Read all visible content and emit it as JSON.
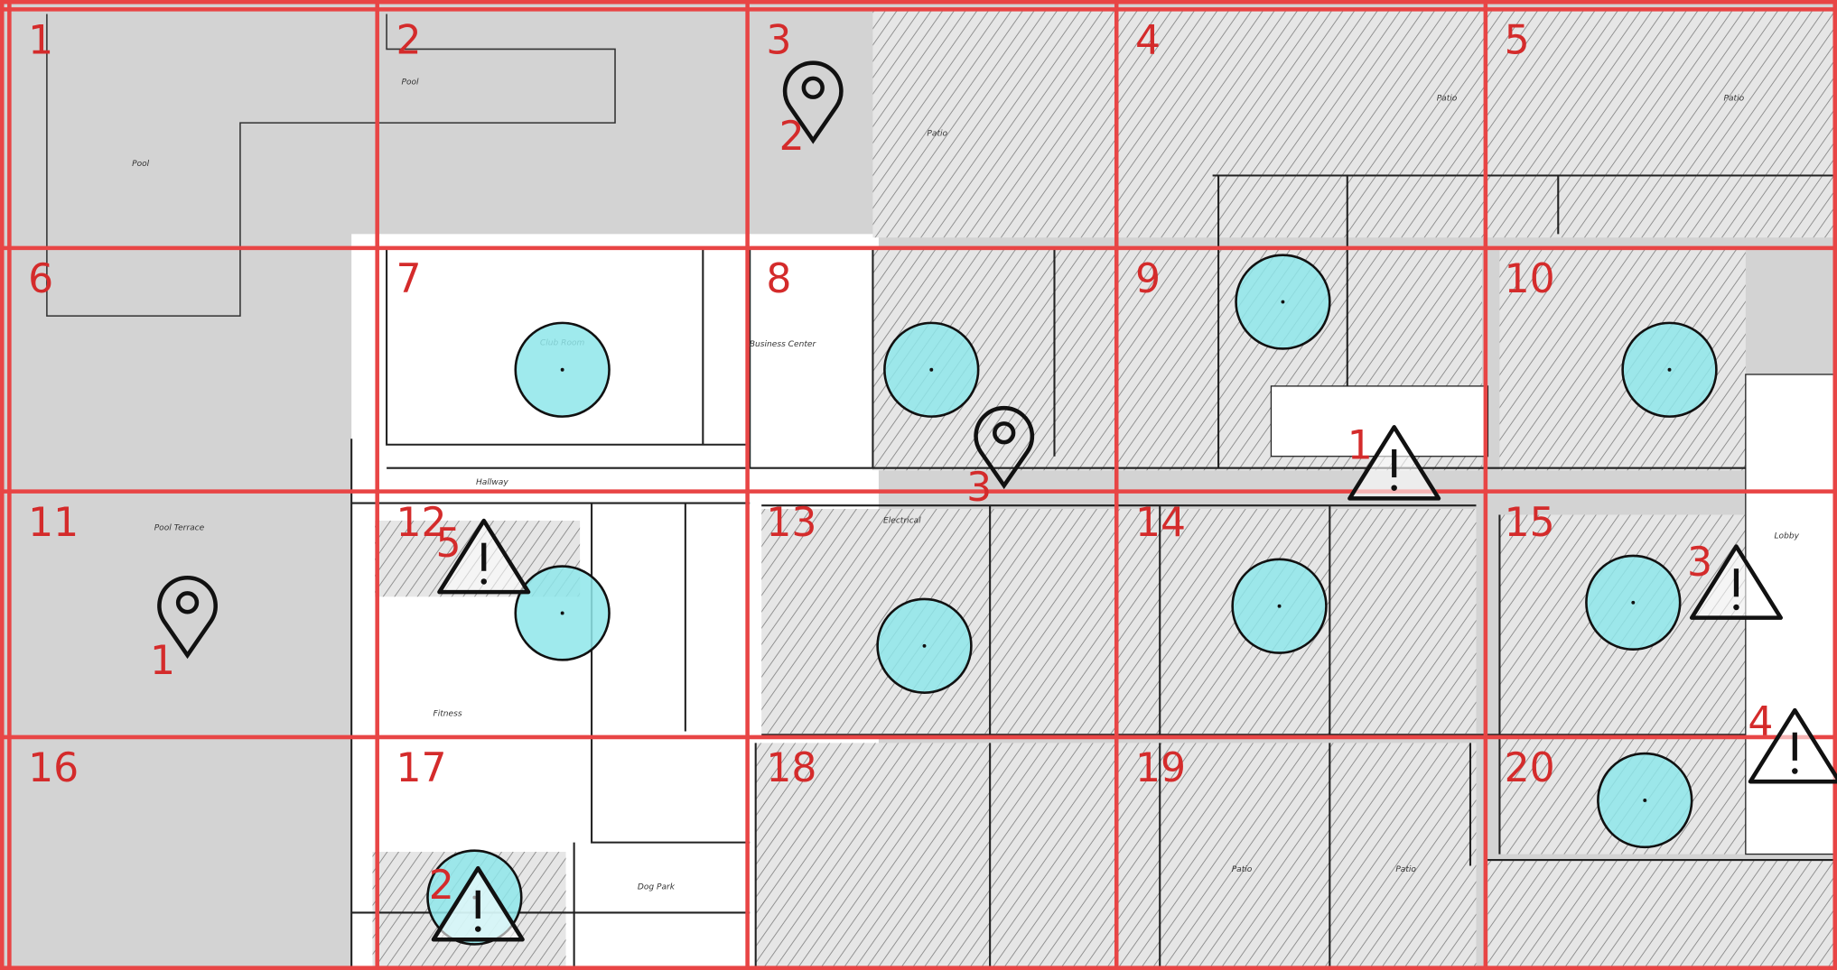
{
  "grid": {
    "cells": [
      "1",
      "2",
      "3",
      "4",
      "5",
      "6",
      "7",
      "8",
      "9",
      "10",
      "11",
      "12",
      "13",
      "14",
      "15",
      "16",
      "17",
      "18",
      "19",
      "20"
    ]
  },
  "pins": [
    {
      "label": "2"
    },
    {
      "label": "3"
    },
    {
      "label": "1"
    }
  ],
  "warnings": [
    {
      "label": "1"
    },
    {
      "label": "5"
    },
    {
      "label": "3"
    },
    {
      "label": "4"
    },
    {
      "label": "2"
    }
  ],
  "rooms": [
    "Pool",
    "Pool",
    "Club Room",
    "Business Center",
    "Hallway",
    "Pool Terrace",
    "Fitness",
    "Dog Park",
    "Electrical",
    "Lobby",
    "Patio",
    "Patio",
    "Patio",
    "Patio",
    "Patio"
  ]
}
